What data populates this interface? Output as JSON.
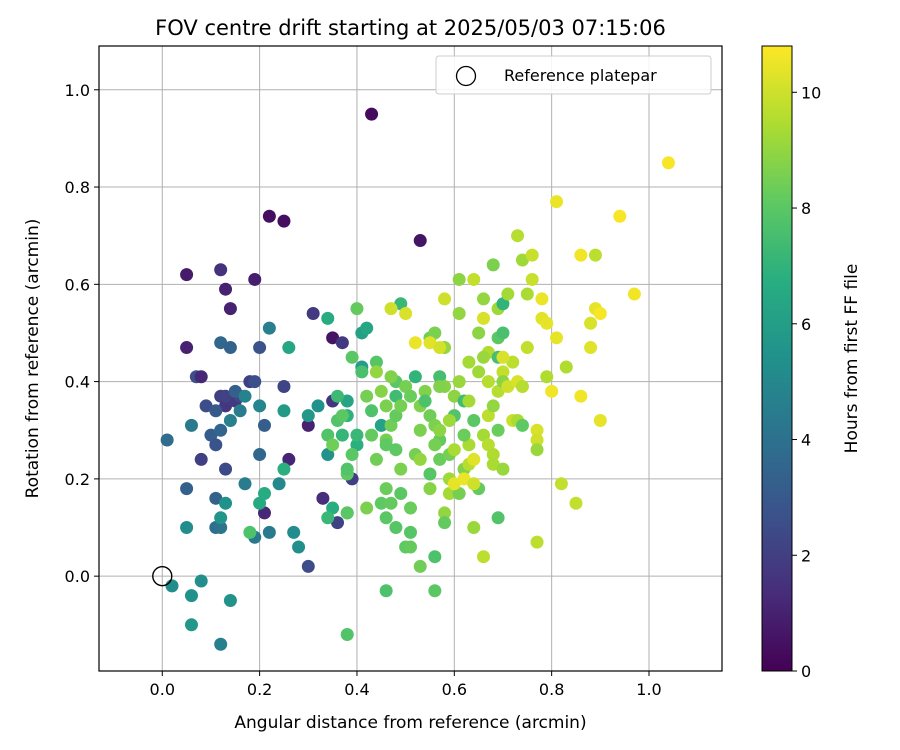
{
  "chart_data": {
    "type": "scatter",
    "title": "FOV centre drift starting at 2025/05/03 07:15:06",
    "xlabel": "Angular distance from reference (arcmin)",
    "ylabel": "Rotation from reference (arcmin)",
    "xlim": [
      -0.13,
      1.15
    ],
    "ylim": [
      -0.195,
      1.09
    ],
    "xticks": [
      0.0,
      0.2,
      0.4,
      0.6,
      0.8,
      1.0
    ],
    "xtick_labels": [
      "0.0",
      "0.2",
      "0.4",
      "0.6",
      "0.8",
      "1.0"
    ],
    "yticks": [
      0.0,
      0.2,
      0.4,
      0.6,
      0.8,
      1.0
    ],
    "ytick_labels": [
      "0.0",
      "0.2",
      "0.4",
      "0.6",
      "0.8",
      "1.0"
    ],
    "grid": true,
    "legend": {
      "placement": "top-right",
      "entries": [
        "Reference platepar"
      ]
    },
    "reference_point": {
      "x": 0.0,
      "y": 0.0
    },
    "colorbar": {
      "label": "Hours from first FF file",
      "colormap": "viridis",
      "range": [
        0,
        10.8
      ],
      "ticks": [
        0,
        2,
        4,
        6,
        8,
        10
      ],
      "tick_labels": [
        "0",
        "2",
        "4",
        "6",
        "8",
        "10"
      ]
    },
    "points": [
      [
        0.43,
        0.95,
        0.3
      ],
      [
        0.22,
        0.74,
        0.4
      ],
      [
        0.25,
        0.73,
        0.4
      ],
      [
        0.53,
        0.69,
        0.6
      ],
      [
        0.05,
        0.62,
        0.8
      ],
      [
        0.19,
        0.61,
        0.9
      ],
      [
        0.12,
        0.63,
        1.5
      ],
      [
        0.13,
        0.59,
        1.0
      ],
      [
        0.14,
        0.55,
        1.0
      ],
      [
        0.05,
        0.47,
        1.0
      ],
      [
        0.35,
        0.49,
        0.6
      ],
      [
        0.31,
        0.54,
        1.8
      ],
      [
        0.26,
        0.24,
        1.1
      ],
      [
        0.3,
        0.31,
        1.0
      ],
      [
        0.21,
        0.13,
        1.2
      ],
      [
        0.33,
        0.16,
        1.4
      ],
      [
        0.35,
        0.36,
        1.6
      ],
      [
        0.08,
        0.24,
        2.0
      ],
      [
        0.09,
        0.35,
        2.5
      ],
      [
        0.12,
        0.37,
        2.0
      ],
      [
        0.13,
        0.35,
        1.7
      ],
      [
        0.15,
        0.36,
        1.8
      ],
      [
        0.16,
        0.37,
        2.3
      ],
      [
        0.18,
        0.4,
        2.0
      ],
      [
        0.19,
        0.4,
        2.6
      ],
      [
        0.13,
        0.22,
        2.4
      ],
      [
        0.2,
        0.47,
        2.8
      ],
      [
        0.25,
        0.39,
        2.2
      ],
      [
        0.37,
        0.48,
        1.8
      ],
      [
        0.39,
        0.2,
        2.0
      ],
      [
        0.36,
        0.11,
        2.1
      ],
      [
        0.3,
        0.02,
        2.5
      ],
      [
        0.13,
        0.37,
        2.1
      ],
      [
        0.07,
        0.41,
        2.6
      ],
      [
        0.08,
        0.41,
        1.2
      ],
      [
        0.1,
        0.29,
        3.2
      ],
      [
        0.11,
        0.27,
        2.8
      ],
      [
        0.12,
        0.3,
        3.5
      ],
      [
        0.15,
        0.38,
        3.3
      ],
      [
        0.21,
        0.31,
        3.2
      ],
      [
        0.2,
        0.25,
        3.6
      ],
      [
        0.11,
        0.34,
        3.0
      ],
      [
        0.14,
        0.47,
        3.4
      ],
      [
        0.12,
        0.48,
        3.6
      ],
      [
        0.05,
        0.18,
        3.3
      ],
      [
        0.11,
        0.16,
        3.4
      ],
      [
        0.01,
        0.28,
        3.8
      ],
      [
        0.11,
        0.1,
        3.9
      ],
      [
        0.12,
        0.1,
        4.1
      ],
      [
        0.19,
        0.08,
        4.3
      ],
      [
        0.22,
        0.09,
        4.4
      ],
      [
        0.17,
        0.19,
        4.5
      ],
      [
        0.14,
        0.32,
        4.6
      ],
      [
        0.17,
        0.37,
        4.8
      ],
      [
        0.16,
        0.34,
        4.5
      ],
      [
        0.2,
        0.35,
        4.9
      ],
      [
        0.22,
        0.51,
        4.6
      ],
      [
        0.24,
        0.19,
        5.0
      ],
      [
        0.27,
        0.09,
        5.2
      ],
      [
        0.28,
        0.06,
        5.3
      ],
      [
        0.06,
        0.31,
        4.4
      ],
      [
        0.05,
        0.1,
        5.2
      ],
      [
        0.13,
        0.15,
        5.4
      ],
      [
        0.12,
        0.12,
        5.6
      ],
      [
        0.02,
        -0.02,
        5.2
      ],
      [
        0.06,
        -0.04,
        5.4
      ],
      [
        0.08,
        -0.01,
        5.3
      ],
      [
        0.14,
        -0.05,
        5.5
      ],
      [
        0.06,
        -0.1,
        5.7
      ],
      [
        0.12,
        -0.14,
        4.6
      ],
      [
        0.2,
        0.15,
        6.5
      ],
      [
        0.21,
        0.17,
        6.6
      ],
      [
        0.25,
        0.22,
        6.8
      ],
      [
        0.26,
        0.47,
        6.4
      ],
      [
        0.25,
        0.34,
        5.8
      ],
      [
        0.32,
        0.35,
        5.4
      ],
      [
        0.34,
        0.25,
        5.5
      ],
      [
        0.3,
        0.33,
        5.7
      ],
      [
        0.35,
        0.14,
        6.7
      ],
      [
        0.34,
        0.53,
        6.6
      ],
      [
        0.38,
        0.13,
        6.8
      ],
      [
        0.37,
        0.29,
        7.1
      ],
      [
        0.38,
        0.33,
        6.9
      ],
      [
        0.38,
        0.36,
        6.3
      ],
      [
        0.41,
        0.43,
        5.9
      ],
      [
        0.41,
        0.5,
        6.1
      ],
      [
        0.42,
        0.51,
        6.4
      ],
      [
        0.45,
        0.31,
        6.2
      ],
      [
        0.4,
        0.27,
        6.8
      ],
      [
        0.4,
        0.29,
        7.2
      ],
      [
        0.36,
        0.32,
        7.8
      ],
      [
        0.37,
        0.33,
        8.0
      ],
      [
        0.34,
        0.29,
        7.8
      ],
      [
        0.18,
        0.09,
        7.7
      ],
      [
        0.38,
        -0.12,
        7.8
      ],
      [
        0.38,
        0.13,
        8.0
      ],
      [
        0.38,
        0.21,
        8.1
      ],
      [
        0.35,
        0.27,
        8.4
      ],
      [
        0.39,
        0.45,
        8.0
      ],
      [
        0.4,
        0.55,
        8.2
      ],
      [
        0.41,
        0.42,
        7.6
      ],
      [
        0.43,
        0.34,
        7.7
      ],
      [
        0.44,
        0.44,
        7.9
      ],
      [
        0.45,
        0.15,
        8.1
      ],
      [
        0.46,
        0.18,
        8.3
      ],
      [
        0.46,
        0.12,
        8.0
      ],
      [
        0.47,
        0.15,
        8.2
      ],
      [
        0.46,
        -0.03,
        7.7
      ],
      [
        0.46,
        0.28,
        8.5
      ],
      [
        0.46,
        0.35,
        8.6
      ],
      [
        0.47,
        0.31,
        8.4
      ],
      [
        0.48,
        0.33,
        8.2
      ],
      [
        0.48,
        0.37,
        7.4
      ],
      [
        0.49,
        0.56,
        7.2
      ],
      [
        0.48,
        0.4,
        8.0
      ],
      [
        0.49,
        0.35,
        8.5
      ],
      [
        0.49,
        0.22,
        8.6
      ],
      [
        0.5,
        0.06,
        8.1
      ],
      [
        0.51,
        0.06,
        8.2
      ],
      [
        0.51,
        0.09,
        7.9
      ],
      [
        0.53,
        0.02,
        8.4
      ],
      [
        0.52,
        0.25,
        8.5
      ],
      [
        0.53,
        0.3,
        8.6
      ],
      [
        0.53,
        0.35,
        8.7
      ],
      [
        0.54,
        0.38,
        8.7
      ],
      [
        0.55,
        0.18,
        8.8
      ],
      [
        0.55,
        0.21,
        7.9
      ],
      [
        0.55,
        0.49,
        8.4
      ],
      [
        0.56,
        0.5,
        8.6
      ],
      [
        0.56,
        0.04,
        7.7
      ],
      [
        0.56,
        -0.03,
        8.0
      ],
      [
        0.57,
        0.24,
        8.3
      ],
      [
        0.57,
        0.28,
        8.2
      ],
      [
        0.57,
        0.41,
        7.5
      ],
      [
        0.58,
        0.47,
        9.0
      ],
      [
        0.58,
        0.39,
        8.8
      ],
      [
        0.58,
        0.13,
        9.0
      ],
      [
        0.58,
        0.11,
        8.2
      ],
      [
        0.59,
        0.17,
        9.3
      ],
      [
        0.59,
        0.2,
        9.2
      ],
      [
        0.59,
        0.25,
        8.5
      ],
      [
        0.6,
        0.33,
        7.8
      ],
      [
        0.6,
        0.37,
        8.9
      ],
      [
        0.61,
        0.61,
        8.9
      ],
      [
        0.61,
        0.54,
        9.0
      ],
      [
        0.61,
        0.4,
        9.1
      ],
      [
        0.61,
        0.17,
        8.5
      ],
      [
        0.62,
        0.22,
        8.7
      ],
      [
        0.62,
        0.36,
        7.4
      ],
      [
        0.63,
        0.44,
        9.3
      ],
      [
        0.63,
        0.27,
        9.4
      ],
      [
        0.63,
        0.23,
        9.6
      ],
      [
        0.64,
        0.61,
        9.8
      ],
      [
        0.64,
        0.32,
        8.0
      ],
      [
        0.64,
        0.1,
        9.1
      ],
      [
        0.65,
        0.5,
        8.9
      ],
      [
        0.65,
        0.42,
        9.2
      ],
      [
        0.65,
        0.18,
        8.2
      ],
      [
        0.66,
        0.57,
        9.0
      ],
      [
        0.66,
        0.29,
        9.3
      ],
      [
        0.66,
        0.04,
        9.7
      ],
      [
        0.67,
        0.46,
        9.5
      ],
      [
        0.67,
        0.4,
        9.6
      ],
      [
        0.67,
        0.33,
        9.7
      ],
      [
        0.67,
        0.27,
        9.6
      ],
      [
        0.68,
        0.64,
        8.6
      ],
      [
        0.68,
        0.25,
        9.5
      ],
      [
        0.68,
        0.23,
        9.4
      ],
      [
        0.69,
        0.55,
        9.2
      ],
      [
        0.69,
        0.49,
        8.0
      ],
      [
        0.69,
        0.45,
        7.5
      ],
      [
        0.69,
        0.38,
        9.6
      ],
      [
        0.69,
        0.3,
        8.3
      ],
      [
        0.69,
        0.12,
        7.8
      ],
      [
        0.7,
        0.56,
        7.0
      ],
      [
        0.7,
        0.5,
        7.6
      ],
      [
        0.7,
        0.42,
        9.8
      ],
      [
        0.7,
        0.22,
        9.1
      ],
      [
        0.7,
        0.4,
        8.9
      ],
      [
        0.71,
        0.58,
        9.3
      ],
      [
        0.71,
        0.39,
        10.0
      ],
      [
        0.72,
        0.32,
        9.9
      ],
      [
        0.72,
        0.44,
        9.7
      ],
      [
        0.73,
        0.7,
        9.6
      ],
      [
        0.73,
        0.4,
        10.2
      ],
      [
        0.73,
        0.32,
        9.4
      ],
      [
        0.74,
        0.65,
        9.2
      ],
      [
        0.74,
        0.31,
        8.1
      ],
      [
        0.74,
        0.39,
        9.6
      ],
      [
        0.75,
        0.47,
        9.8
      ],
      [
        0.75,
        0.58,
        9.4
      ],
      [
        0.76,
        0.61,
        9.9
      ],
      [
        0.76,
        0.66,
        9.9
      ],
      [
        0.77,
        0.3,
        10.2
      ],
      [
        0.77,
        0.28,
        10.0
      ],
      [
        0.77,
        0.26,
        9.1
      ],
      [
        0.77,
        0.07,
        9.7
      ],
      [
        0.78,
        0.57,
        10.5
      ],
      [
        0.78,
        0.53,
        10.3
      ],
      [
        0.79,
        0.52,
        10.4
      ],
      [
        0.79,
        0.41,
        9.5
      ],
      [
        0.8,
        0.38,
        10.6
      ],
      [
        0.81,
        0.49,
        10.4
      ],
      [
        0.81,
        0.77,
        10.5
      ],
      [
        0.82,
        0.19,
        9.8
      ],
      [
        0.83,
        0.43,
        9.5
      ],
      [
        0.85,
        0.15,
        9.8
      ],
      [
        0.86,
        0.66,
        10.6
      ],
      [
        0.86,
        0.37,
        10.6
      ],
      [
        0.88,
        0.52,
        10.2
      ],
      [
        0.88,
        0.47,
        10.3
      ],
      [
        0.89,
        0.55,
        10.4
      ],
      [
        0.89,
        0.66,
        9.7
      ],
      [
        0.9,
        0.54,
        10.7
      ],
      [
        0.9,
        0.32,
        10.4
      ],
      [
        0.94,
        0.74,
        10.7
      ],
      [
        0.97,
        0.58,
        10.6
      ],
      [
        1.04,
        0.85,
        10.7
      ],
      [
        0.47,
        0.55,
        10.0
      ],
      [
        0.5,
        0.54,
        10.2
      ],
      [
        0.52,
        0.48,
        10.5
      ],
      [
        0.55,
        0.48,
        10.3
      ],
      [
        0.57,
        0.47,
        10.1
      ],
      [
        0.58,
        0.57,
        10.0
      ],
      [
        0.6,
        0.19,
        10.4
      ],
      [
        0.62,
        0.2,
        10.5
      ],
      [
        0.64,
        0.19,
        10.0
      ],
      [
        0.64,
        0.24,
        10.3
      ],
      [
        0.66,
        0.53,
        10.2
      ],
      [
        0.7,
        0.45,
        10.2
      ],
      [
        0.42,
        0.14,
        8.6
      ],
      [
        0.43,
        0.29,
        8.2
      ],
      [
        0.44,
        0.24,
        8.4
      ],
      [
        0.45,
        0.38,
        8.8
      ],
      [
        0.47,
        0.41,
        8.7
      ],
      [
        0.5,
        0.39,
        8.5
      ],
      [
        0.51,
        0.37,
        8.3
      ],
      [
        0.52,
        0.41,
        7.0
      ],
      [
        0.48,
        0.26,
        8.1
      ],
      [
        0.53,
        0.24,
        9.0
      ],
      [
        0.54,
        0.36,
        7.7
      ],
      [
        0.55,
        0.33,
        8.4
      ],
      [
        0.56,
        0.31,
        8.6
      ],
      [
        0.57,
        0.3,
        8.9
      ],
      [
        0.59,
        0.32,
        9.2
      ],
      [
        0.6,
        0.26,
        9.4
      ],
      [
        0.49,
        0.17,
        8.0
      ],
      [
        0.51,
        0.14,
        8.3
      ],
      [
        0.48,
        0.1,
        7.9
      ],
      [
        0.44,
        0.42,
        9.0
      ],
      [
        0.46,
        0.27,
        8.1
      ],
      [
        0.42,
        0.37,
        8.5
      ],
      [
        0.39,
        0.25,
        8.0
      ],
      [
        0.38,
        0.22,
        7.8
      ],
      [
        0.36,
        0.37,
        7.3
      ],
      [
        0.34,
        0.12,
        7.2
      ],
      [
        0.56,
        0.27,
        8.5
      ],
      [
        0.57,
        0.39,
        8.7
      ],
      [
        0.62,
        0.29,
        8.3
      ],
      [
        0.63,
        0.36,
        9.3
      ],
      [
        0.68,
        0.35,
        9.0
      ],
      [
        0.66,
        0.45,
        9.1
      ]
    ]
  }
}
